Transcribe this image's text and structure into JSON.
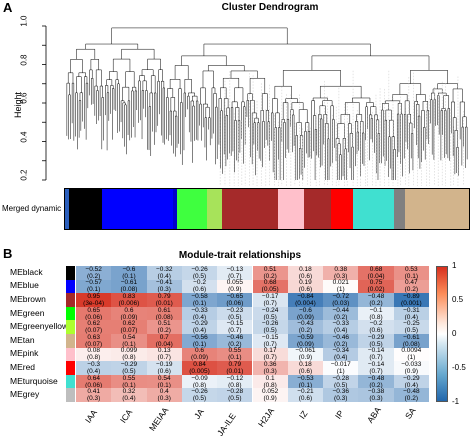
{
  "panel_a": {
    "letter": "A",
    "title": "Cluster Dendrogram",
    "ylabel": "Height",
    "yticks": [
      "1.0",
      "0.9",
      "0.8",
      "0.7",
      "0.6",
      "0.5",
      "0.4",
      "0.3",
      "0.2"
    ],
    "color_bar_label": "Merged dynamic",
    "module_colors": [
      "#2b5fbd",
      "#000000",
      "#0000ff",
      "#0000cc",
      "#3fff3f",
      "#a7e35a",
      "#a52a2a",
      "#ffc0cb",
      "#a52a2a",
      "#ff0000",
      "#40e0d0",
      "#808080",
      "#d2b48c"
    ]
  },
  "panel_b": {
    "letter": "B",
    "title": "Module-trait relationships",
    "colorbar_ticks": [
      "1",
      "0.5",
      "0",
      "-0.5",
      "-1"
    ]
  },
  "chart_data": {
    "type": "heatmap",
    "title": "Module-trait relationships",
    "rows": [
      "MEblack",
      "MEblue",
      "MEbrown",
      "MEgreen",
      "MEgreenyellow",
      "MEtan",
      "MEpink",
      "MEred",
      "MEturquoise",
      "MEgrey"
    ],
    "row_colors": [
      "#000000",
      "#0000ff",
      "#a52a2a",
      "#00ff00",
      "#adff2f",
      "#d2b48c",
      "#ffc0cb",
      "#ff0000",
      "#40e0d0",
      "#bebebe"
    ],
    "columns": [
      "IAA",
      "ICA",
      "MEIAA",
      "JA",
      "JA-ILE",
      "H2JA",
      "IZ",
      "IP",
      "ABA",
      "SA"
    ],
    "correlation": [
      [
        -0.52,
        -0.6,
        -0.32,
        -0.26,
        -0.13,
        0.51,
        0.18,
        0.38,
        0.68,
        0.53
      ],
      [
        -0.57,
        -0.61,
        -0.41,
        -0.2,
        0.055,
        0.68,
        0.19,
        0.021,
        0.75,
        0.47
      ],
      [
        0.95,
        0.83,
        0.79,
        -0.58,
        -0.65,
        -0.17,
        -0.84,
        -0.72,
        -0.48,
        -0.89
      ],
      [
        0.65,
        0.6,
        0.61,
        -0.33,
        -0.23,
        -0.24,
        -0.6,
        -0.44,
        -0.1,
        -0.31
      ],
      [
        0.62,
        0.62,
        0.51,
        -0.29,
        -0.15,
        -0.26,
        -0.43,
        -0.33,
        -0.2,
        -0.25
      ],
      [
        0.63,
        0.54,
        0.7,
        -0.56,
        -0.46,
        -0.15,
        -0.59,
        -0.46,
        -0.29,
        -0.61
      ],
      [
        0.08,
        0.099,
        0.13,
        0.6,
        0.55,
        0.17,
        -0.061,
        -0.34,
        -0.14,
        0.0094
      ],
      [
        -0.3,
        -0.29,
        -0.19,
        0.84,
        0.79,
        0.36,
        0.18,
        -0.017,
        -0.14,
        -0.033
      ],
      [
        0.64,
        0.55,
        0.54,
        -0.09,
        -0.12,
        0.1,
        -0.53,
        -0.28,
        -0.48,
        -0.29
      ],
      [
        0.41,
        0.32,
        0.4,
        -0.26,
        -0.28,
        0.052,
        -0.21,
        -0.36,
        -0.38,
        -0.48
      ]
    ],
    "pvalues": [
      [
        "0.2",
        "0.1",
        "0.4",
        "0.5",
        "0.7",
        "0.2",
        "0.6",
        "0.3",
        "0.04",
        "0.1"
      ],
      [
        "0.1",
        "0.08",
        "0.3",
        "0.6",
        "0.9",
        "0.05",
        "0.6",
        "1",
        "0.02",
        "0.2"
      ],
      [
        "3e-04",
        "0.006",
        "0.01",
        "0.1",
        "0.06",
        "0.7",
        "0.004",
        "0.03",
        "0.2",
        "0.001"
      ],
      [
        "0.06",
        "0.09",
        "0.08",
        "0.4",
        "0.5",
        "0.5",
        "0.09",
        "0.2",
        "0.8",
        "0.4"
      ],
      [
        "0.07",
        "0.07",
        "0.2",
        "0.4",
        "0.7",
        "0.5",
        "0.2",
        "0.4",
        "0.6",
        "0.5"
      ],
      [
        "0.07",
        "0.1",
        "0.04",
        "0.1",
        "0.2",
        "0.7",
        "0.09",
        "0.2",
        "0.5",
        "0.08"
      ],
      [
        "0.8",
        "0.8",
        "0.7",
        "0.09",
        "0.1",
        "0.7",
        "0.9",
        "0.4",
        "0.7",
        "1"
      ],
      [
        "0.4",
        "0.5",
        "0.6",
        "0.005",
        "0.01",
        "0.3",
        "0.6",
        "1",
        "0.7",
        "0.9"
      ],
      [
        "0.06",
        "0.1",
        "0.1",
        "0.8",
        "0.8",
        "0.8",
        "0.1",
        "0.5",
        "0.2",
        "0.4"
      ],
      [
        "0.3",
        "0.4",
        "0.3",
        "0.5",
        "0.5",
        "0.9",
        "0.6",
        "0.3",
        "0.3",
        "0.2"
      ]
    ],
    "color_scale": {
      "min": -1,
      "max": 1,
      "low": "#2166ac",
      "mid": "#ffffff",
      "high": "#d7301f"
    }
  }
}
